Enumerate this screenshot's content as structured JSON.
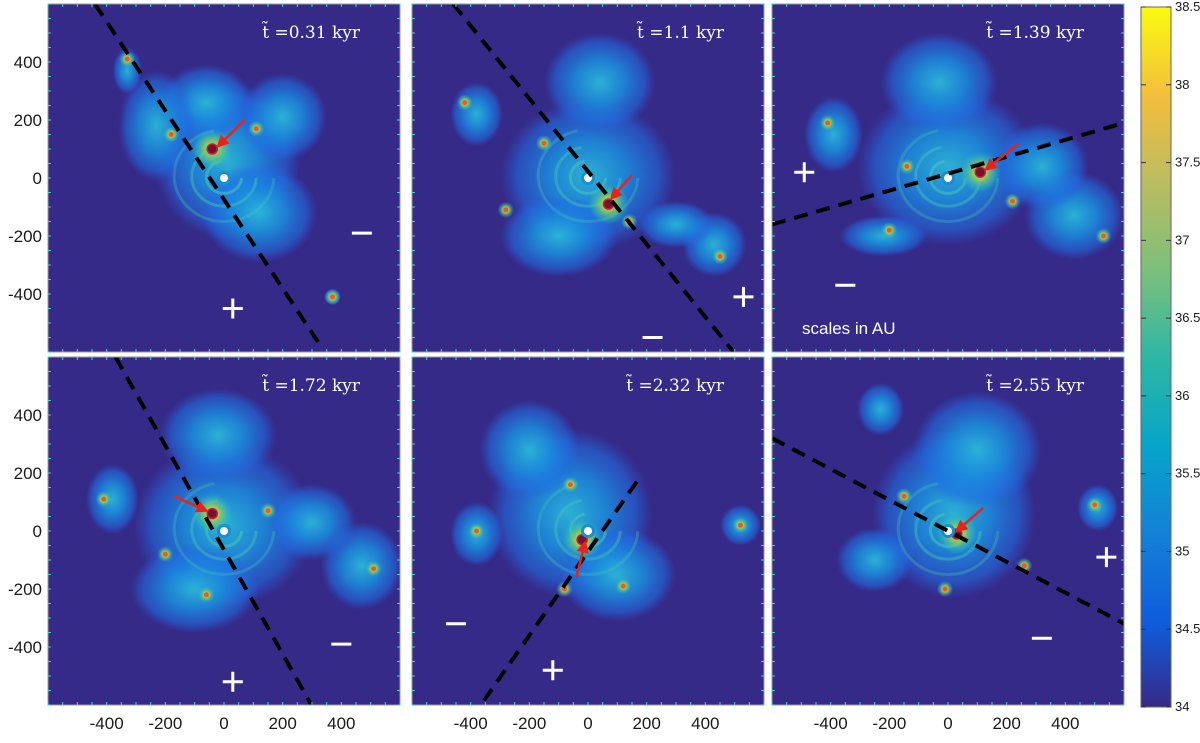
{
  "chart_data": {
    "type": "heatmap",
    "layout": {
      "rows": 2,
      "cols": 3
    },
    "xlim": [
      -600,
      600
    ],
    "ylim": [
      -600,
      600
    ],
    "xticks": [
      -400,
      -200,
      0,
      200,
      400
    ],
    "yticks": [
      -400,
      -200,
      0,
      200,
      400
    ],
    "colorbar": {
      "range": [
        34,
        38.5
      ],
      "ticks": [
        "34",
        "34.5",
        "35",
        "35.5",
        "36",
        "36.5",
        "37",
        "37.5",
        "38",
        "38.5"
      ],
      "colormap": "parula"
    },
    "annotation": "scales in AU",
    "panels": [
      {
        "time_label": "t̃ =0.31 kyr",
        "dashed_line": [
          [
            -440,
            600
          ],
          [
            330,
            -580
          ]
        ],
        "plus_marker": [
          30,
          -450
        ],
        "minus_marker": [
          470,
          -190
        ],
        "arrow": {
          "from": [
            70,
            200
          ],
          "to": [
            -20,
            110
          ]
        },
        "central_source": [
          0,
          0
        ],
        "fragment": [
          -40,
          100
        ],
        "clumps": [
          [
            -330,
            410
          ],
          [
            -180,
            150
          ],
          [
            110,
            170
          ],
          [
            -40,
            90
          ],
          [
            370,
            -410
          ]
        ],
        "gas": [
          {
            "x": 10,
            "y": 60,
            "rx": 250,
            "ry": 270
          },
          {
            "x": -60,
            "y": 260,
            "rx": 160,
            "ry": 130
          },
          {
            "x": 200,
            "y": 210,
            "rx": 150,
            "ry": 150
          },
          {
            "x": -230,
            "y": 180,
            "rx": 130,
            "ry": 190
          },
          {
            "x": 120,
            "y": -120,
            "rx": 200,
            "ry": 170
          },
          {
            "x": -330,
            "y": 370,
            "rx": 50,
            "ry": 80
          },
          {
            "x": 370,
            "y": -410,
            "rx": 28,
            "ry": 28
          }
        ]
      },
      {
        "time_label": "t̃ =1.1 kyr",
        "dashed_line": [
          [
            -460,
            600
          ],
          [
            560,
            -680
          ]
        ],
        "plus_marker": [
          530,
          -410
        ],
        "minus_marker": [
          220,
          -550
        ],
        "arrow": {
          "from": [
            150,
            10
          ],
          "to": [
            80,
            -70
          ]
        },
        "central_source": [
          0,
          0
        ],
        "fragment": [
          70,
          -90
        ],
        "clumps": [
          [
            -420,
            260
          ],
          [
            -280,
            -110
          ],
          [
            -150,
            120
          ],
          [
            140,
            -150
          ],
          [
            450,
            -270
          ]
        ],
        "gas": [
          {
            "x": 0,
            "y": 10,
            "rx": 300,
            "ry": 260
          },
          {
            "x": 40,
            "y": 330,
            "rx": 190,
            "ry": 170
          },
          {
            "x": -380,
            "y": 220,
            "rx": 90,
            "ry": 110
          },
          {
            "x": 430,
            "y": -230,
            "rx": 110,
            "ry": 110
          },
          {
            "x": 300,
            "y": -160,
            "rx": 130,
            "ry": 80
          },
          {
            "x": -100,
            "y": -200,
            "rx": 200,
            "ry": 140
          }
        ]
      },
      {
        "time_label": "t̃ =1.39 kyr",
        "dashed_line": [
          [
            -600,
            -160
          ],
          [
            600,
            190
          ]
        ],
        "plus_marker": [
          -490,
          20
        ],
        "minus_marker": [
          -350,
          -370
        ],
        "arrow": {
          "from": [
            240,
            120
          ],
          "to": [
            130,
            30
          ]
        },
        "central_source": [
          0,
          0
        ],
        "fragment": [
          110,
          20
        ],
        "clumps": [
          [
            -410,
            190
          ],
          [
            -200,
            -180
          ],
          [
            -140,
            40
          ],
          [
            220,
            -80
          ],
          [
            530,
            -200
          ]
        ],
        "gas": [
          {
            "x": 0,
            "y": 40,
            "rx": 310,
            "ry": 270
          },
          {
            "x": -30,
            "y": 330,
            "rx": 200,
            "ry": 170
          },
          {
            "x": -390,
            "y": 150,
            "rx": 100,
            "ry": 130
          },
          {
            "x": 430,
            "y": -130,
            "rx": 170,
            "ry": 150
          },
          {
            "x": 320,
            "y": 40,
            "rx": 160,
            "ry": 150
          },
          {
            "x": -220,
            "y": -200,
            "rx": 150,
            "ry": 70
          }
        ]
      },
      {
        "time_label": "t̃ =1.72 kyr",
        "dashed_line": [
          [
            -370,
            600
          ],
          [
            320,
            -640
          ]
        ],
        "plus_marker": [
          30,
          -520
        ],
        "minus_marker": [
          400,
          -390
        ],
        "arrow": {
          "from": [
            -170,
            120
          ],
          "to": [
            -60,
            70
          ]
        },
        "central_source": [
          0,
          0
        ],
        "fragment": [
          -40,
          60
        ],
        "clumps": [
          [
            -410,
            110
          ],
          [
            -200,
            -80
          ],
          [
            -60,
            -220
          ],
          [
            150,
            70
          ],
          [
            510,
            -130
          ]
        ],
        "gas": [
          {
            "x": 0,
            "y": 20,
            "rx": 310,
            "ry": 280
          },
          {
            "x": -20,
            "y": 330,
            "rx": 200,
            "ry": 160
          },
          {
            "x": -380,
            "y": 110,
            "rx": 90,
            "ry": 120
          },
          {
            "x": 470,
            "y": -120,
            "rx": 140,
            "ry": 150
          },
          {
            "x": 300,
            "y": 30,
            "rx": 150,
            "ry": 130
          },
          {
            "x": -100,
            "y": -200,
            "rx": 220,
            "ry": 150
          }
        ]
      },
      {
        "time_label": "t̃ =2.32 kyr",
        "dashed_line": [
          [
            -400,
            -650
          ],
          [
            180,
            190
          ]
        ],
        "plus_marker": [
          -120,
          -480
        ],
        "minus_marker": [
          -450,
          -320
        ],
        "arrow": {
          "from": [
            -40,
            -160
          ],
          "to": [
            -10,
            -40
          ]
        },
        "central_source": [
          0,
          0
        ],
        "fragment": [
          -20,
          -30
        ],
        "clumps": [
          [
            -60,
            160
          ],
          [
            -80,
            -200
          ],
          [
            120,
            -190
          ],
          [
            520,
            20
          ],
          [
            -380,
            0
          ]
        ],
        "gas": [
          {
            "x": -60,
            "y": 60,
            "rx": 280,
            "ry": 290
          },
          {
            "x": -200,
            "y": 280,
            "rx": 170,
            "ry": 170
          },
          {
            "x": 100,
            "y": -150,
            "rx": 200,
            "ry": 160
          },
          {
            "x": 520,
            "y": 20,
            "rx": 70,
            "ry": 70
          },
          {
            "x": -380,
            "y": -10,
            "rx": 90,
            "ry": 110
          }
        ]
      },
      {
        "time_label": "t̃ =2.55 kyr",
        "dashed_line": [
          [
            -600,
            320
          ],
          [
            620,
            -330
          ]
        ],
        "plus_marker": [
          540,
          -90
        ],
        "minus_marker": [
          320,
          -370
        ],
        "arrow": {
          "from": [
            120,
            80
          ],
          "to": [
            30,
            0
          ]
        },
        "central_source": [
          0,
          0
        ],
        "fragment": [
          30,
          -10
        ],
        "clumps": [
          [
            -150,
            120
          ],
          [
            -10,
            -200
          ],
          [
            260,
            -120
          ],
          [
            500,
            90
          ]
        ],
        "gas": [
          {
            "x": 20,
            "y": 60,
            "rx": 280,
            "ry": 290
          },
          {
            "x": 100,
            "y": 280,
            "rx": 220,
            "ry": 200
          },
          {
            "x": -250,
            "y": -100,
            "rx": 130,
            "ry": 110
          },
          {
            "x": 510,
            "y": 80,
            "rx": 70,
            "ry": 80
          },
          {
            "x": -230,
            "y": 420,
            "rx": 80,
            "ry": 90
          }
        ]
      }
    ]
  }
}
